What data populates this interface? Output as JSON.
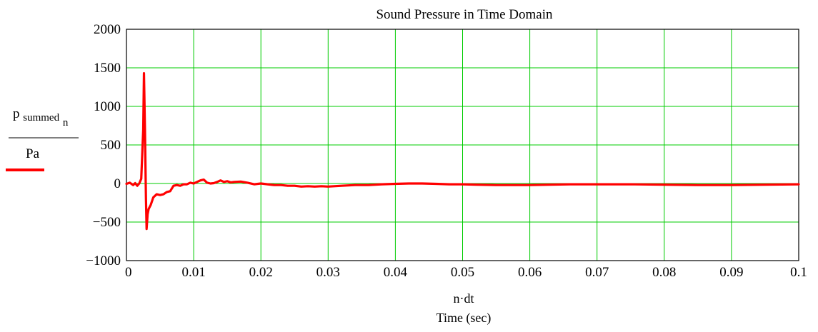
{
  "chart_data": {
    "type": "line",
    "title": "Sound Pressure in Time Domain",
    "xlabel_expr": "n·dt",
    "xlabel": "Time (sec)",
    "ylabel": {
      "numerator_main": "p",
      "numerator_sub": "summed",
      "numerator_subsub": "n",
      "denominator": "Pa"
    },
    "xlim": [
      0,
      0.1
    ],
    "ylim": [
      -1000,
      2000
    ],
    "x_ticks": [
      0,
      0.01,
      0.02,
      0.03,
      0.04,
      0.05,
      0.06,
      0.07,
      0.08,
      0.09,
      0.1
    ],
    "x_tick_labels": [
      "0",
      "0.01",
      "0.02",
      "0.03",
      "0.04",
      "0.05",
      "0.06",
      "0.07",
      "0.08",
      "0.09",
      "0.1"
    ],
    "y_ticks": [
      -1000,
      -500,
      0,
      500,
      1000,
      1500,
      2000
    ],
    "y_tick_labels": [
      "−1000",
      "−500",
      "0",
      "500",
      "1000",
      "1500",
      "2000"
    ],
    "grid": true,
    "colors": {
      "grid": "#00cc00",
      "series": "#ff0000",
      "axes": "#000000"
    },
    "series": [
      {
        "color": "#ff0000",
        "x": [
          0,
          0.0005,
          0.001,
          0.0013,
          0.0016,
          0.0019,
          0.0022,
          0.0025,
          0.0026,
          0.00275,
          0.0029,
          0.003,
          0.00315,
          0.0033,
          0.0036,
          0.004,
          0.0045,
          0.005,
          0.0055,
          0.006,
          0.0065,
          0.007,
          0.0075,
          0.008,
          0.0085,
          0.009,
          0.0095,
          0.01,
          0.0105,
          0.011,
          0.0115,
          0.012,
          0.0125,
          0.013,
          0.0135,
          0.014,
          0.0145,
          0.015,
          0.0155,
          0.016,
          0.017,
          0.018,
          0.019,
          0.02,
          0.021,
          0.022,
          0.023,
          0.024,
          0.025,
          0.026,
          0.027,
          0.028,
          0.029,
          0.03,
          0.032,
          0.034,
          0.036,
          0.038,
          0.04,
          0.042,
          0.044,
          0.046,
          0.048,
          0.05,
          0.052,
          0.055,
          0.058,
          0.06,
          0.063,
          0.066,
          0.07,
          0.075,
          0.08,
          0.085,
          0.09,
          0.095,
          0.1
        ],
        "values": [
          -5,
          10,
          -20,
          5,
          -30,
          0,
          60,
          700,
          1430,
          700,
          -200,
          -590,
          -400,
          -330,
          -280,
          -180,
          -140,
          -150,
          -140,
          -110,
          -100,
          -30,
          -20,
          -30,
          -10,
          -10,
          10,
          0,
          20,
          40,
          50,
          10,
          0,
          5,
          20,
          40,
          20,
          30,
          15,
          20,
          25,
          10,
          -10,
          0,
          -10,
          -20,
          -20,
          -30,
          -30,
          -40,
          -35,
          -40,
          -35,
          -40,
          -30,
          -20,
          -20,
          -10,
          -5,
          0,
          0,
          -5,
          -10,
          -10,
          -15,
          -20,
          -20,
          -20,
          -15,
          -10,
          -10,
          -10,
          -15,
          -20,
          -20,
          -15,
          -10
        ]
      }
    ]
  }
}
